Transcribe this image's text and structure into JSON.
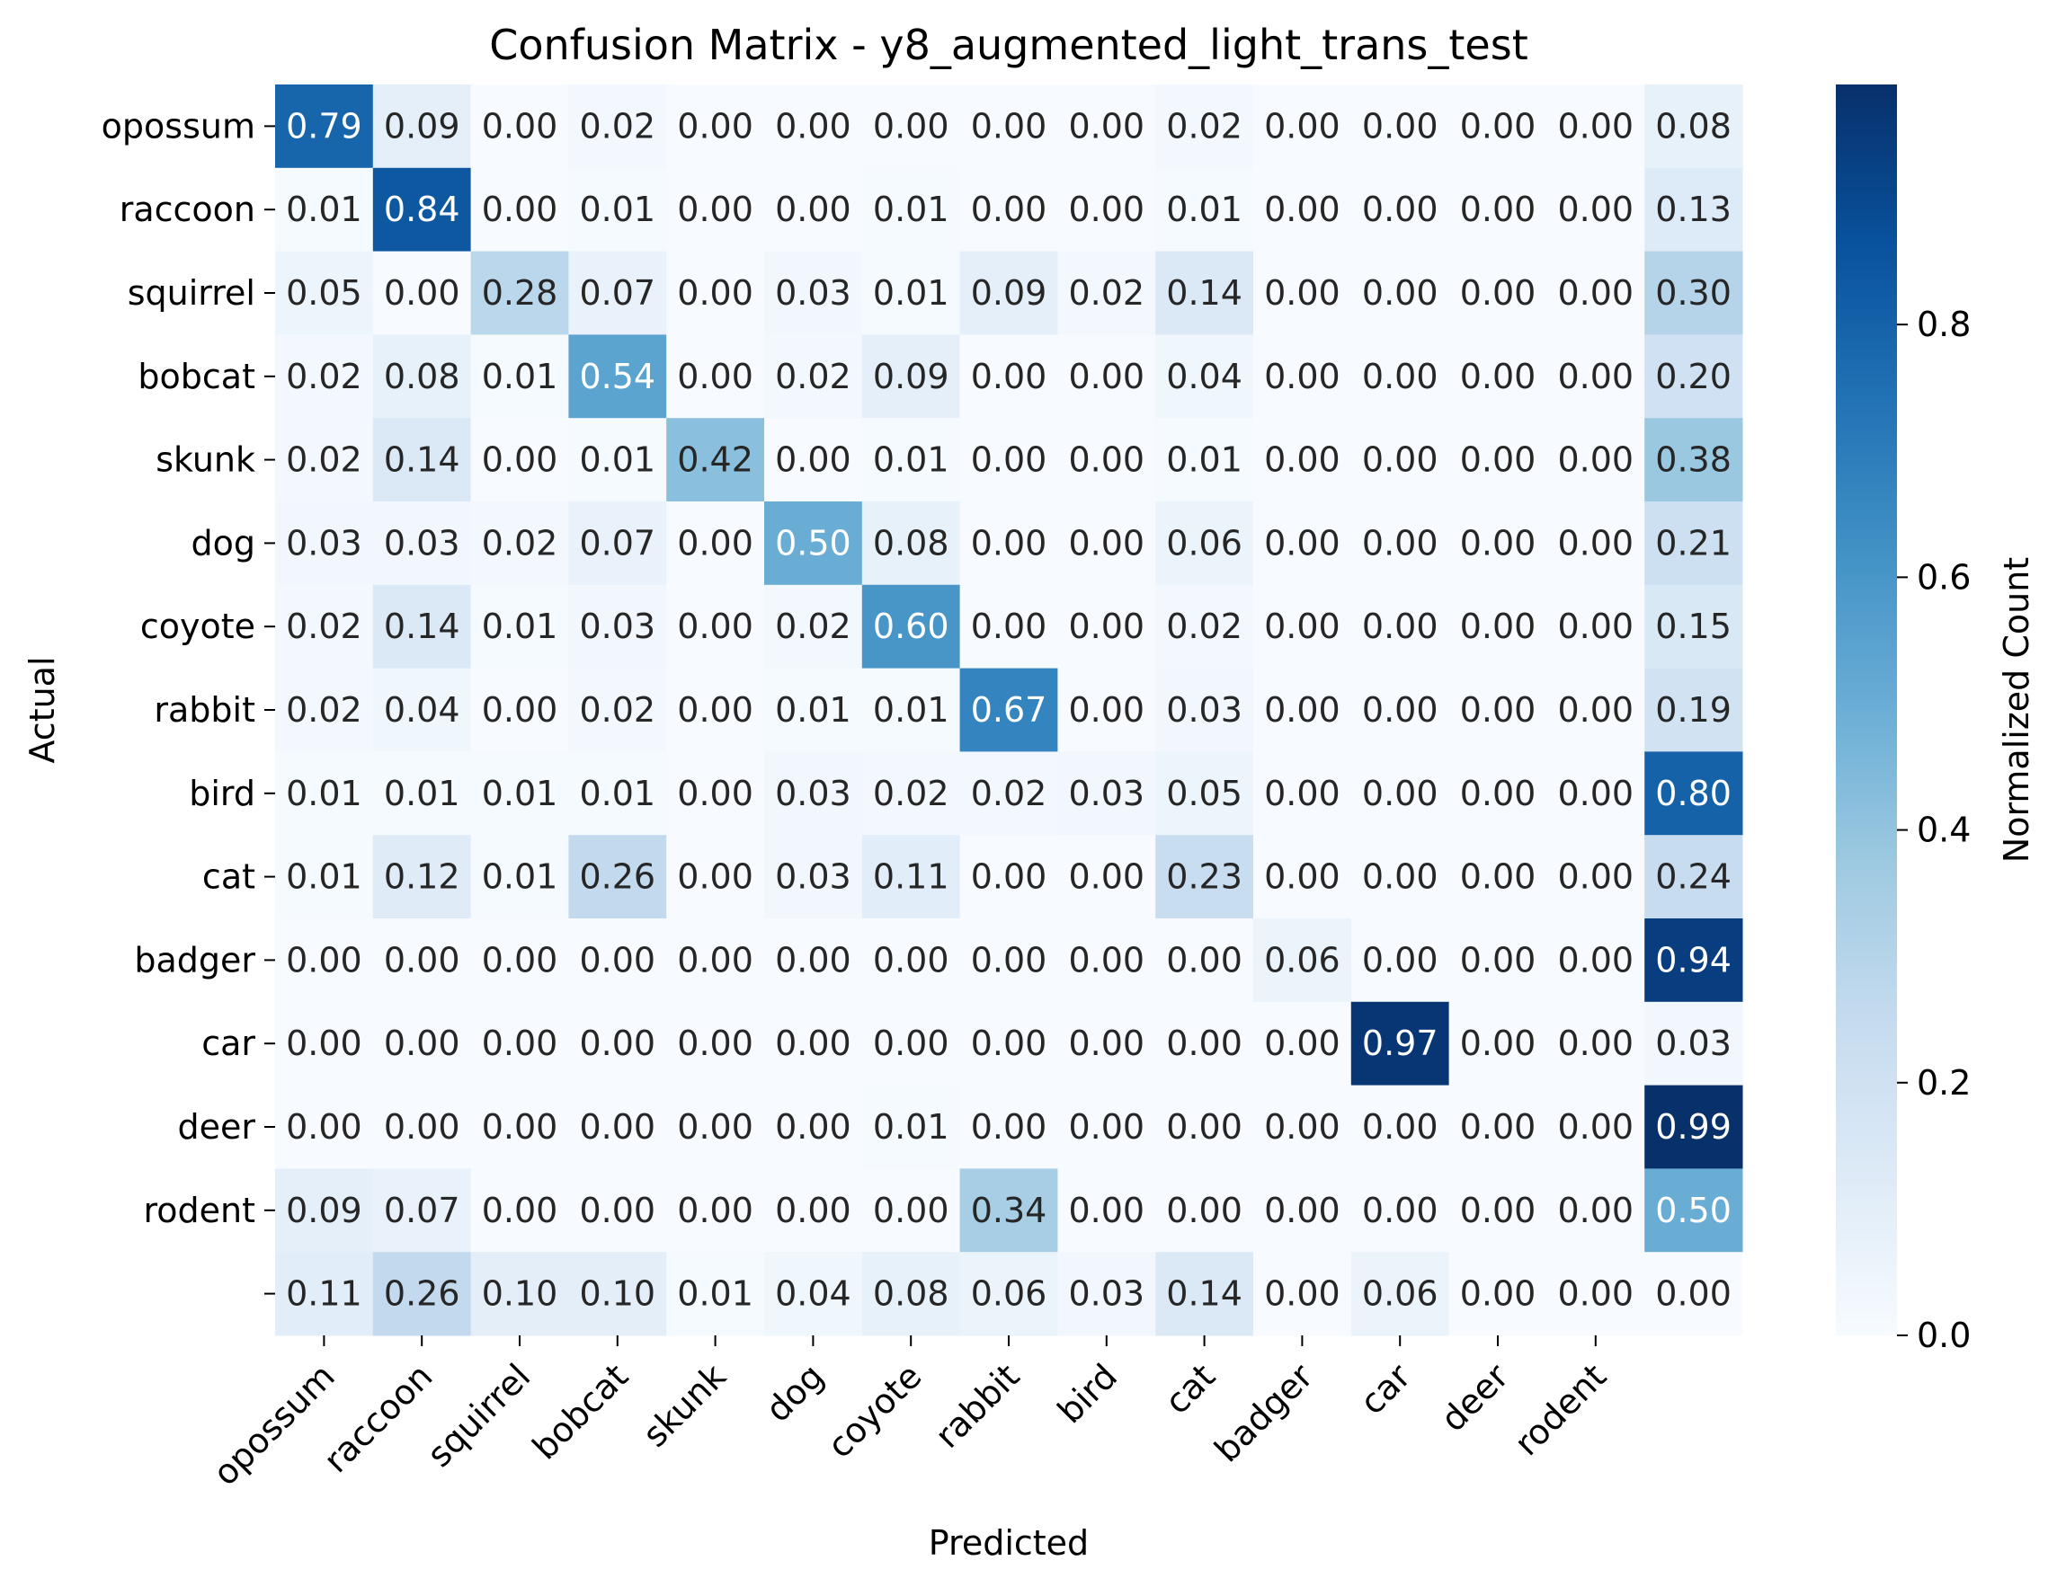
{
  "chart_data": {
    "type": "heatmap",
    "title": "Confusion Matrix - y8_augmented_light_trans_test",
    "xlabel": "Predicted",
    "ylabel": "Actual",
    "row_labels": [
      "opossum",
      "raccoon",
      "squirrel",
      "bobcat",
      "skunk",
      "dog",
      "coyote",
      "rabbit",
      "bird",
      "cat",
      "badger",
      "car",
      "deer",
      "rodent",
      ""
    ],
    "col_labels": [
      "opossum",
      "raccoon",
      "squirrel",
      "bobcat",
      "skunk",
      "dog",
      "coyote",
      "rabbit",
      "bird",
      "cat",
      "badger",
      "car",
      "deer",
      "rodent",
      ""
    ],
    "values": [
      [
        0.79,
        0.09,
        0.0,
        0.02,
        0.0,
        0.0,
        0.0,
        0.0,
        0.0,
        0.02,
        0.0,
        0.0,
        0.0,
        0.0,
        0.08
      ],
      [
        0.01,
        0.84,
        0.0,
        0.01,
        0.0,
        0.0,
        0.01,
        0.0,
        0.0,
        0.01,
        0.0,
        0.0,
        0.0,
        0.0,
        0.13
      ],
      [
        0.05,
        0.0,
        0.28,
        0.07,
        0.0,
        0.03,
        0.01,
        0.09,
        0.02,
        0.14,
        0.0,
        0.0,
        0.0,
        0.0,
        0.3
      ],
      [
        0.02,
        0.08,
        0.01,
        0.54,
        0.0,
        0.02,
        0.09,
        0.0,
        0.0,
        0.04,
        0.0,
        0.0,
        0.0,
        0.0,
        0.2
      ],
      [
        0.02,
        0.14,
        0.0,
        0.01,
        0.42,
        0.0,
        0.01,
        0.0,
        0.0,
        0.01,
        0.0,
        0.0,
        0.0,
        0.0,
        0.38
      ],
      [
        0.03,
        0.03,
        0.02,
        0.07,
        0.0,
        0.5,
        0.08,
        0.0,
        0.0,
        0.06,
        0.0,
        0.0,
        0.0,
        0.0,
        0.21
      ],
      [
        0.02,
        0.14,
        0.01,
        0.03,
        0.0,
        0.02,
        0.6,
        0.0,
        0.0,
        0.02,
        0.0,
        0.0,
        0.0,
        0.0,
        0.15
      ],
      [
        0.02,
        0.04,
        0.0,
        0.02,
        0.0,
        0.01,
        0.01,
        0.67,
        0.0,
        0.03,
        0.0,
        0.0,
        0.0,
        0.0,
        0.19
      ],
      [
        0.01,
        0.01,
        0.01,
        0.01,
        0.0,
        0.03,
        0.02,
        0.02,
        0.03,
        0.05,
        0.0,
        0.0,
        0.0,
        0.0,
        0.8
      ],
      [
        0.01,
        0.12,
        0.01,
        0.26,
        0.0,
        0.03,
        0.11,
        0.0,
        0.0,
        0.23,
        0.0,
        0.0,
        0.0,
        0.0,
        0.24
      ],
      [
        0.0,
        0.0,
        0.0,
        0.0,
        0.0,
        0.0,
        0.0,
        0.0,
        0.0,
        0.0,
        0.06,
        0.0,
        0.0,
        0.0,
        0.94
      ],
      [
        0.0,
        0.0,
        0.0,
        0.0,
        0.0,
        0.0,
        0.0,
        0.0,
        0.0,
        0.0,
        0.0,
        0.97,
        0.0,
        0.0,
        0.03
      ],
      [
        0.0,
        0.0,
        0.0,
        0.0,
        0.0,
        0.0,
        0.01,
        0.0,
        0.0,
        0.0,
        0.0,
        0.0,
        0.0,
        0.0,
        0.99
      ],
      [
        0.09,
        0.07,
        0.0,
        0.0,
        0.0,
        0.0,
        0.0,
        0.34,
        0.0,
        0.0,
        0.0,
        0.0,
        0.0,
        0.0,
        0.5
      ],
      [
        0.11,
        0.26,
        0.1,
        0.1,
        0.01,
        0.04,
        0.08,
        0.06,
        0.03,
        0.14,
        0.0,
        0.06,
        0.0,
        0.0,
        0.0
      ]
    ],
    "colorbar": {
      "label": "Normalized Count",
      "range": [
        0,
        0.99
      ],
      "ticks": [
        0.0,
        0.2,
        0.4,
        0.6,
        0.8
      ],
      "tick_labels": [
        "0.0",
        "0.2",
        "0.4",
        "0.6",
        "0.8"
      ],
      "colormap": "Blues",
      "colors": [
        "#f7fbff",
        "#deebf7",
        "#c6dbef",
        "#9ecae1",
        "#6baed6",
        "#4292c6",
        "#2171b5",
        "#08519c",
        "#08306b"
      ]
    },
    "grid": false,
    "legend": "colorbar-right"
  }
}
